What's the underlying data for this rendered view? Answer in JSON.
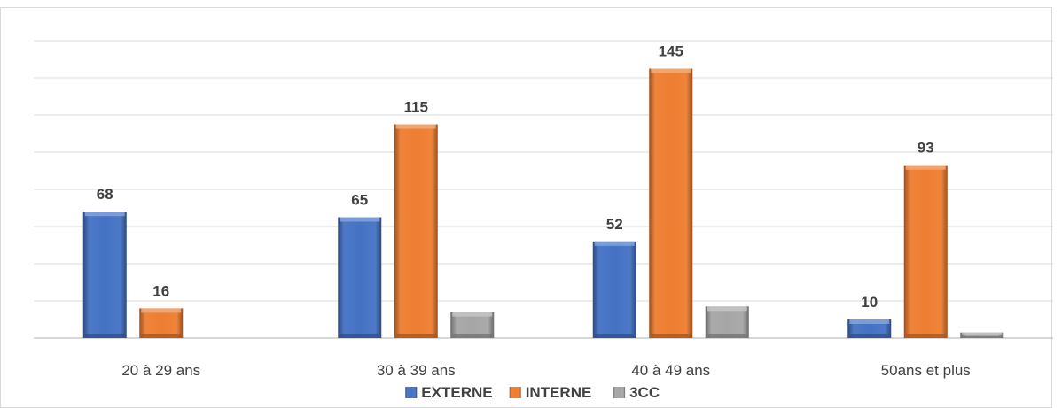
{
  "chart_data": {
    "type": "bar",
    "categories": [
      "20 à 29 ans",
      "30 à 39 ans",
      "40 à 49 ans",
      "50ans et plus"
    ],
    "series": [
      {
        "name": "EXTERNE",
        "values": [
          68,
          65,
          52,
          10
        ],
        "color": "#4472c4",
        "labels": [
          "68",
          "65",
          "52",
          "10"
        ]
      },
      {
        "name": "INTERNE",
        "values": [
          16,
          115,
          145,
          93
        ],
        "color": "#ed7d31",
        "labels": [
          "16",
          "115",
          "145",
          "93"
        ]
      },
      {
        "name": "3CC",
        "values": [
          0,
          14,
          17,
          3
        ],
        "color": "#a5a5a5",
        "labels": [
          "",
          "",
          "",
          ""
        ]
      }
    ],
    "ylim": [
      0,
      160
    ],
    "y_gridlines": [
      0,
      20,
      40,
      60,
      80,
      100,
      120,
      140,
      160
    ],
    "show_y_tick_labels": false,
    "grid": true,
    "legend": "bottom"
  }
}
